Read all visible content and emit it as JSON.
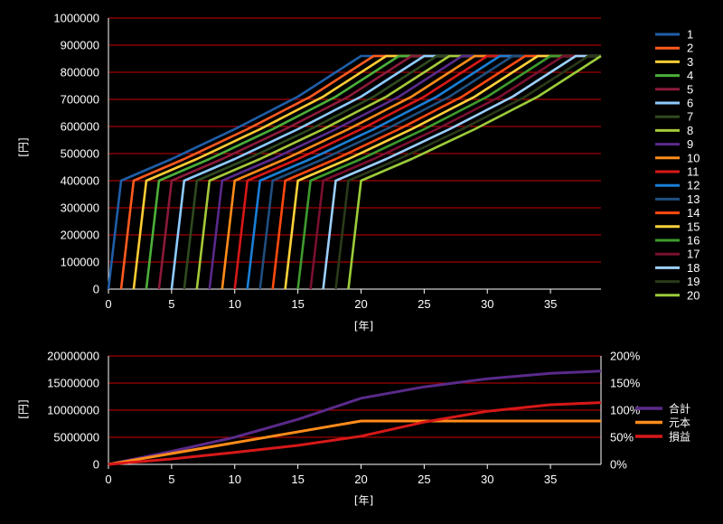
{
  "colors": {
    "background": "#000000",
    "grid": "#cc0000",
    "axis": "#ffffff",
    "palette": [
      "#1f5ea8",
      "#ff5a1f",
      "#ffcc33",
      "#4caf3a",
      "#8b1a3a",
      "#8ecbff",
      "#2f4a1f",
      "#a6c93a",
      "#5a2a8a",
      "#ff8c1a",
      "#d81818",
      "#1a7fd6",
      "#1f4f7f",
      "#ff4a10",
      "#ffd23a",
      "#3e9b2e",
      "#7a1030",
      "#9cd0ff",
      "#2a3a18",
      "#9ccc3a"
    ]
  },
  "chart_data": [
    {
      "type": "line",
      "xlabel": "[年]",
      "ylabel": "[円]",
      "xlim": [
        0,
        39
      ],
      "ylim": [
        0,
        1000000
      ],
      "xticks": [
        0,
        5,
        10,
        15,
        20,
        25,
        30,
        35
      ],
      "yticks": [
        0,
        100000,
        200000,
        300000,
        400000,
        500000,
        600000,
        700000,
        800000,
        900000,
        1000000
      ],
      "grid": true,
      "legend_position": "right",
      "series_pattern": {
        "count": 20,
        "start_years": [
          0,
          1,
          2,
          3,
          4,
          5,
          6,
          7,
          8,
          9,
          10,
          11,
          12,
          13,
          14,
          15,
          16,
          17,
          18,
          19
        ],
        "initial_value": 400000,
        "plateau_value": 860000,
        "years_to_plateau": 20,
        "curve_points": [
          {
            "t": 1,
            "y": 400000
          },
          {
            "t": 5,
            "y": 480000
          },
          {
            "t": 10,
            "y": 590000
          },
          {
            "t": 15,
            "y": 710000
          },
          {
            "t": 20,
            "y": 860000
          }
        ]
      },
      "series": [
        {
          "name": "1"
        },
        {
          "name": "2"
        },
        {
          "name": "3"
        },
        {
          "name": "4"
        },
        {
          "name": "5"
        },
        {
          "name": "6"
        },
        {
          "name": "7"
        },
        {
          "name": "8"
        },
        {
          "name": "9"
        },
        {
          "name": "10"
        },
        {
          "name": "11"
        },
        {
          "name": "12"
        },
        {
          "name": "13"
        },
        {
          "name": "14"
        },
        {
          "name": "15"
        },
        {
          "name": "16"
        },
        {
          "name": "17"
        },
        {
          "name": "18"
        },
        {
          "name": "19"
        },
        {
          "name": "20"
        }
      ]
    },
    {
      "type": "line",
      "xlabel": "[年]",
      "ylabel": "[円]",
      "xlim": [
        0,
        39
      ],
      "ylim": [
        0,
        20000000
      ],
      "y2lim": [
        0,
        2.0
      ],
      "xticks": [
        0,
        5,
        10,
        15,
        20,
        25,
        30,
        35
      ],
      "yticks": [
        0,
        5000000,
        10000000,
        15000000,
        20000000
      ],
      "y2ticks": [
        "0%",
        "50%",
        "100%",
        "150%",
        "200%"
      ],
      "grid": true,
      "legend_position": "right",
      "series": [
        {
          "name": "合計",
          "color": "#5a2a8a",
          "axis": "left",
          "x": [
            0,
            5,
            10,
            15,
            20,
            25,
            30,
            35,
            39
          ],
          "y": [
            0,
            2400000,
            5000000,
            8300000,
            12200000,
            14300000,
            15800000,
            16800000,
            17200000
          ]
        },
        {
          "name": "元本",
          "color": "#ff8c1a",
          "axis": "left",
          "x": [
            0,
            20,
            39
          ],
          "y": [
            0,
            8000000,
            8000000
          ]
        },
        {
          "name": "損益",
          "color": "#d81818",
          "axis": "right",
          "x": [
            0,
            5,
            10,
            15,
            20,
            25,
            30,
            35,
            39
          ],
          "y": [
            0,
            0.1,
            0.22,
            0.35,
            0.52,
            0.78,
            0.98,
            1.1,
            1.14
          ]
        }
      ]
    }
  ]
}
